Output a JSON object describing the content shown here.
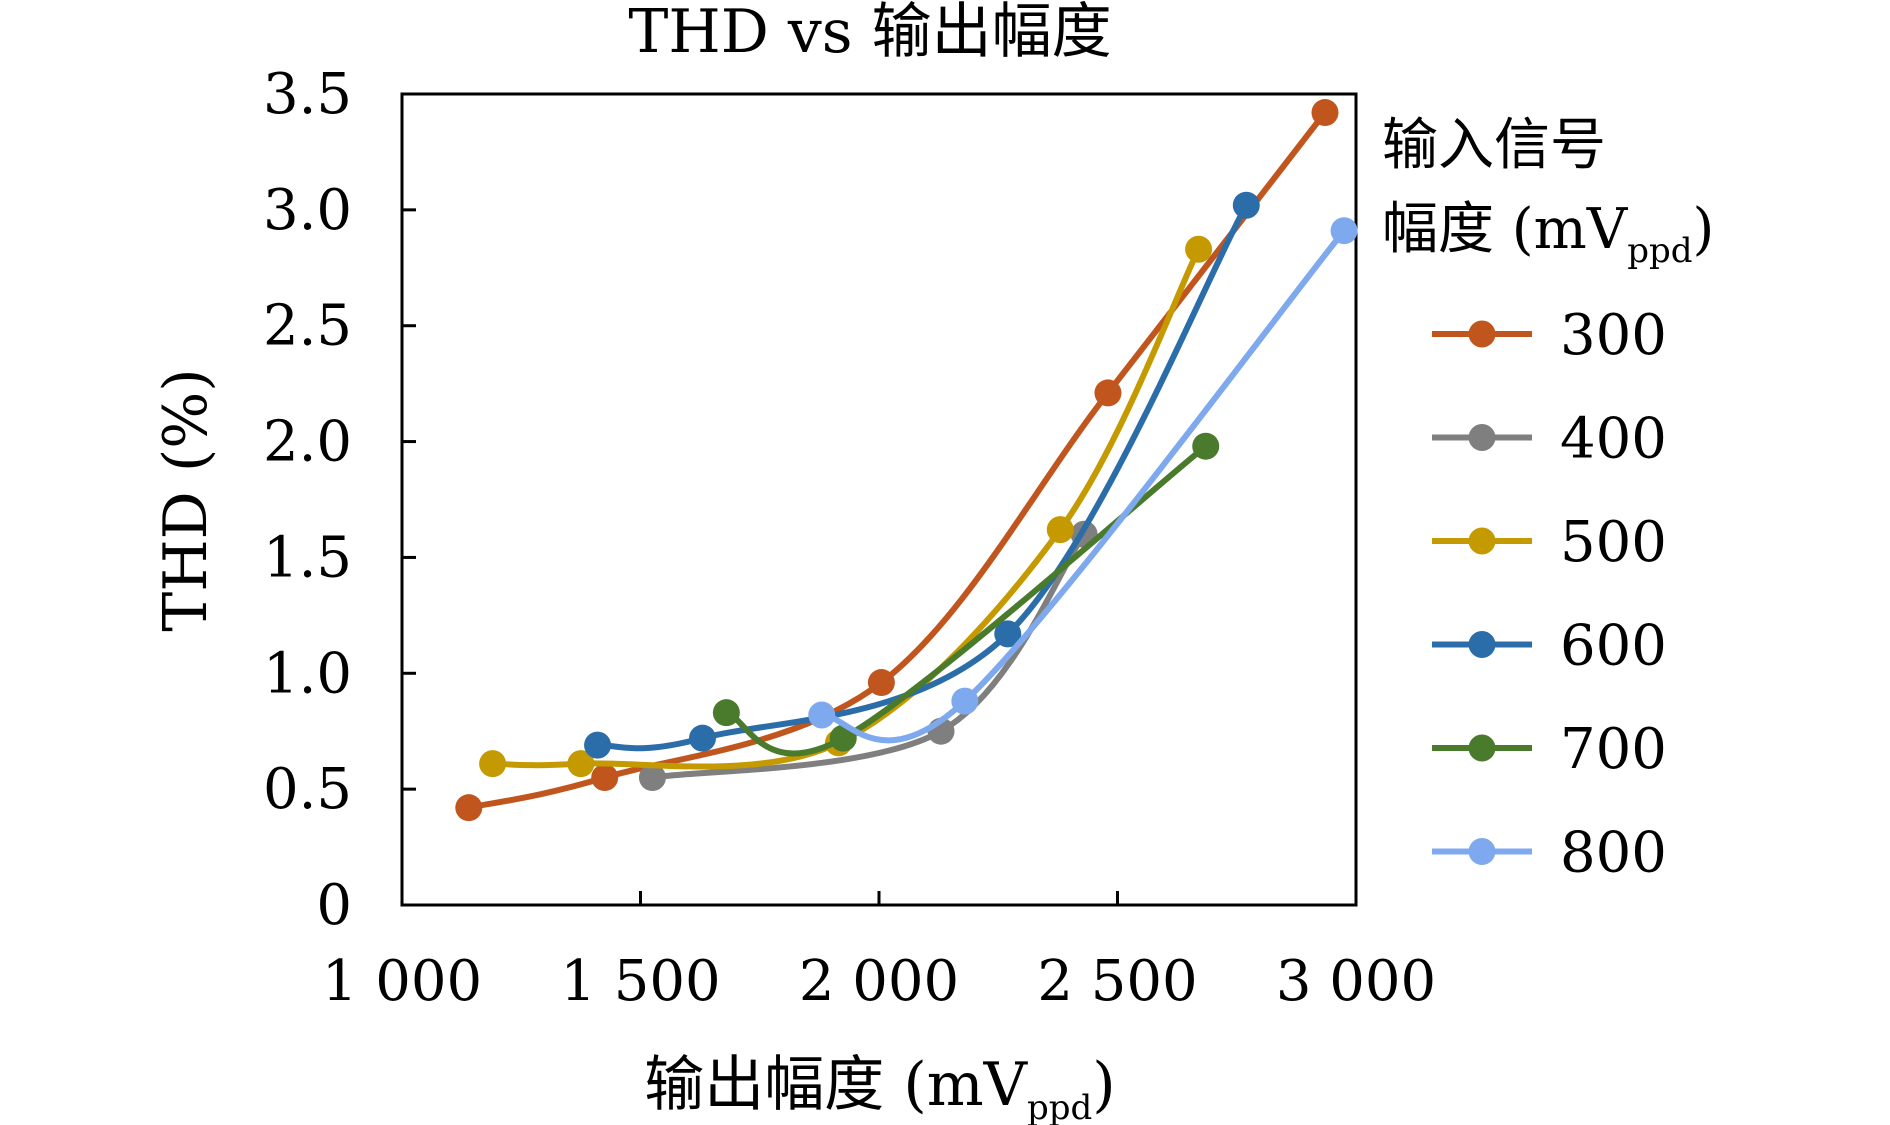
{
  "chart_data": {
    "type": "line",
    "title": "THD vs 输出幅度",
    "xlabel": "输出幅度 (mV",
    "xlabel_sub": "ppd",
    "xlabel_suffix": ")",
    "ylabel": "THD (%)",
    "xlim": [
      1000,
      3000
    ],
    "ylim": [
      0,
      3.5
    ],
    "xticks": [
      1000,
      1500,
      2000,
      2500,
      3000
    ],
    "xtick_labels": [
      "1 000",
      "1 500",
      "2 000",
      "2 500",
      "3 000"
    ],
    "yticks": [
      0,
      0.5,
      1.0,
      1.5,
      2.0,
      2.5,
      3.0,
      3.5
    ],
    "ytick_labels": [
      "0",
      "0.5",
      "1.0",
      "1.5",
      "2.0",
      "2.5",
      "3.0",
      "3.5"
    ],
    "grid": false,
    "legend": {
      "placement": "right",
      "title_line1": "输入信号",
      "title_line2": "幅度 (mV",
      "title_sub": "ppd",
      "title_suffix": ")"
    },
    "series": [
      {
        "name": "300",
        "color": "#c0561d",
        "x": [
          1140,
          1425,
          2005,
          2480,
          2935
        ],
        "y": [
          0.42,
          0.55,
          0.96,
          2.21,
          3.42
        ]
      },
      {
        "name": "400",
        "color": "#7f7f7f",
        "x": [
          1525,
          2130,
          2430
        ],
        "y": [
          0.55,
          0.75,
          1.6
        ]
      },
      {
        "name": "500",
        "color": "#c49a00",
        "x": [
          1190,
          1375,
          1915,
          2380,
          2670
        ],
        "y": [
          0.61,
          0.61,
          0.7,
          1.62,
          2.83
        ]
      },
      {
        "name": "600",
        "color": "#2b6da8",
        "x": [
          1410,
          1630,
          2270,
          2770
        ],
        "y": [
          0.69,
          0.72,
          1.17,
          3.02
        ]
      },
      {
        "name": "700",
        "color": "#4a7a2c",
        "x": [
          1680,
          1925,
          2685
        ],
        "y": [
          0.83,
          0.72,
          1.98
        ]
      },
      {
        "name": "800",
        "color": "#7fa9ee",
        "x": [
          1880,
          2180,
          2975
        ],
        "y": [
          0.82,
          0.88,
          2.91
        ]
      }
    ]
  }
}
